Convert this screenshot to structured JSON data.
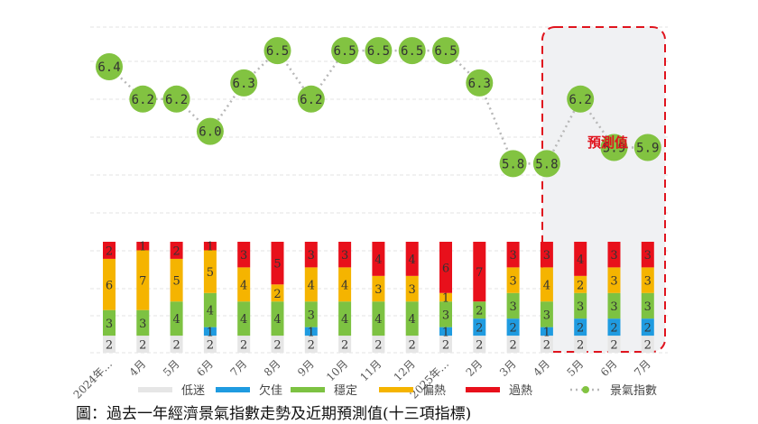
{
  "caption": "圖：過去一年經濟景氣指數走勢及近期預測值(十三項指標)",
  "forecast_label": "預測值",
  "chart_data": {
    "type": "bar",
    "categories": [
      "2024年…",
      "4月",
      "5月",
      "6月",
      "7月",
      "8月",
      "9月",
      "10月",
      "11月",
      "12月",
      "2025年…",
      "2月",
      "3月",
      "4月",
      "5月",
      "6月",
      "7月"
    ],
    "series": [
      {
        "name": "低迷",
        "color": "#e6e6e6",
        "values": [
          2,
          2,
          2,
          2,
          2,
          2,
          2,
          2,
          2,
          2,
          2,
          2,
          2,
          2,
          2,
          2,
          2
        ]
      },
      {
        "name": "欠佳",
        "color": "#1f9be0",
        "values": [
          0,
          0,
          0,
          1,
          0,
          0,
          1,
          0,
          0,
          0,
          1,
          2,
          2,
          1,
          2,
          2,
          2
        ]
      },
      {
        "name": "穩定",
        "color": "#7dc242",
        "values": [
          3,
          3,
          4,
          4,
          4,
          4,
          3,
          4,
          4,
          4,
          3,
          2,
          3,
          3,
          3,
          3,
          3
        ]
      },
      {
        "name": "偏熱",
        "color": "#f5b400",
        "values": [
          6,
          7,
          5,
          5,
          4,
          2,
          4,
          4,
          3,
          3,
          1,
          0,
          3,
          4,
          2,
          3,
          3
        ]
      },
      {
        "name": "過熱",
        "color": "#e8101b",
        "values": [
          2,
          1,
          2,
          1,
          3,
          5,
          3,
          3,
          4,
          4,
          6,
          7,
          3,
          3,
          4,
          3,
          3
        ]
      }
    ],
    "index_series": {
      "name": "景氣指數",
      "color": "#82c341",
      "values": [
        6.4,
        6.2,
        6.2,
        6.0,
        6.3,
        6.5,
        6.2,
        6.5,
        6.5,
        6.5,
        6.5,
        6.3,
        5.8,
        5.8,
        6.2,
        5.9,
        5.9
      ]
    },
    "forecast_categories": [
      "5月",
      "6月",
      "7月"
    ]
  }
}
